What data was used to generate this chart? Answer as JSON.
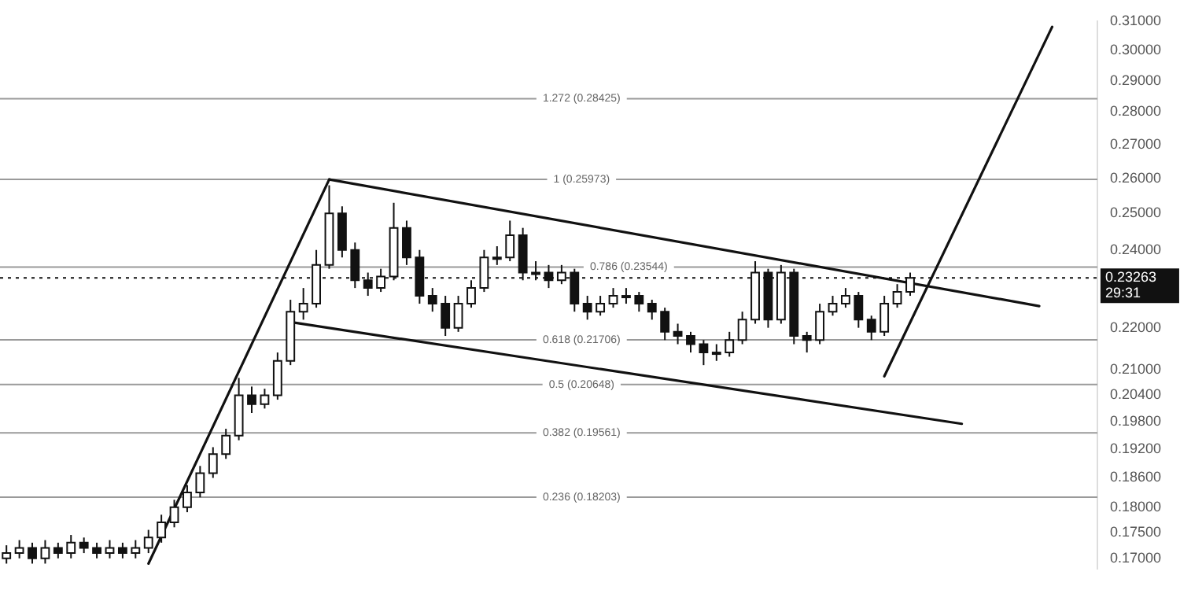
{
  "chart_data": {
    "type": "candlestick",
    "categories": [
      null,
      null,
      null,
      null,
      null,
      null,
      null,
      null,
      null,
      null,
      null,
      null,
      null,
      null,
      null,
      null,
      null,
      null,
      null,
      null,
      null,
      null,
      null,
      null,
      null,
      null,
      null,
      null,
      null,
      null,
      null,
      null,
      null,
      null,
      null,
      null,
      null,
      null,
      null,
      null,
      null,
      null,
      null,
      null,
      null,
      null,
      null,
      null,
      null,
      null,
      null,
      null,
      null,
      null,
      null,
      null,
      null,
      null,
      null,
      null,
      null,
      null,
      null,
      null,
      null,
      null,
      null,
      null,
      null,
      null,
      null,
      null,
      null,
      null,
      null,
      null,
      null,
      null,
      null,
      null,
      null,
      null,
      null,
      null,
      null
    ],
    "ohlc": [
      [
        0.17,
        0.1725,
        0.169,
        0.171
      ],
      [
        0.171,
        0.1735,
        0.17,
        0.172
      ],
      [
        0.172,
        0.173,
        0.169,
        0.17
      ],
      [
        0.17,
        0.1735,
        0.169,
        0.172
      ],
      [
        0.172,
        0.173,
        0.17,
        0.171
      ],
      [
        0.171,
        0.1745,
        0.17,
        0.173
      ],
      [
        0.173,
        0.174,
        0.171,
        0.172
      ],
      [
        0.172,
        0.173,
        0.17,
        0.171
      ],
      [
        0.171,
        0.1735,
        0.17,
        0.172
      ],
      [
        0.172,
        0.173,
        0.17,
        0.171
      ],
      [
        0.171,
        0.1735,
        0.17,
        0.172
      ],
      [
        0.172,
        0.1755,
        0.171,
        0.174
      ],
      [
        0.174,
        0.1785,
        0.173,
        0.177
      ],
      [
        0.177,
        0.1815,
        0.176,
        0.18
      ],
      [
        0.18,
        0.1845,
        0.179,
        0.183
      ],
      [
        0.183,
        0.1885,
        0.182,
        0.187
      ],
      [
        0.187,
        0.1925,
        0.186,
        0.191
      ],
      [
        0.191,
        0.1965,
        0.19,
        0.195
      ],
      [
        0.195,
        0.208,
        0.194,
        0.204
      ],
      [
        0.204,
        0.206,
        0.2,
        0.202
      ],
      [
        0.202,
        0.2055,
        0.201,
        0.204
      ],
      [
        0.204,
        0.214,
        0.203,
        0.212
      ],
      [
        0.212,
        0.227,
        0.211,
        0.224
      ],
      [
        0.224,
        0.23,
        0.222,
        0.226
      ],
      [
        0.226,
        0.24,
        0.225,
        0.236
      ],
      [
        0.236,
        0.258,
        0.235,
        0.25
      ],
      [
        0.25,
        0.252,
        0.238,
        0.24
      ],
      [
        0.24,
        0.242,
        0.23,
        0.232
      ],
      [
        0.232,
        0.234,
        0.228,
        0.23
      ],
      [
        0.23,
        0.235,
        0.229,
        0.233
      ],
      [
        0.233,
        0.253,
        0.232,
        0.246
      ],
      [
        0.246,
        0.248,
        0.236,
        0.238
      ],
      [
        0.238,
        0.24,
        0.226,
        0.228
      ],
      [
        0.228,
        0.23,
        0.224,
        0.226
      ],
      [
        0.226,
        0.228,
        0.218,
        0.22
      ],
      [
        0.22,
        0.228,
        0.219,
        0.226
      ],
      [
        0.226,
        0.232,
        0.225,
        0.23
      ],
      [
        0.23,
        0.24,
        0.229,
        0.238
      ],
      [
        0.238,
        0.241,
        0.236,
        0.238
      ],
      [
        0.238,
        0.248,
        0.237,
        0.244
      ],
      [
        0.244,
        0.246,
        0.232,
        0.234
      ],
      [
        0.234,
        0.237,
        0.232,
        0.234
      ],
      [
        0.234,
        0.236,
        0.23,
        0.232
      ],
      [
        0.232,
        0.236,
        0.231,
        0.234
      ],
      [
        0.234,
        0.235,
        0.224,
        0.226
      ],
      [
        0.226,
        0.228,
        0.222,
        0.224
      ],
      [
        0.224,
        0.228,
        0.223,
        0.226
      ],
      [
        0.226,
        0.23,
        0.225,
        0.228
      ],
      [
        0.228,
        0.23,
        0.226,
        0.228
      ],
      [
        0.228,
        0.229,
        0.224,
        0.226
      ],
      [
        0.226,
        0.227,
        0.222,
        0.224
      ],
      [
        0.224,
        0.225,
        0.217,
        0.219
      ],
      [
        0.219,
        0.221,
        0.216,
        0.218
      ],
      [
        0.218,
        0.219,
        0.214,
        0.216
      ],
      [
        0.216,
        0.217,
        0.211,
        0.214
      ],
      [
        0.214,
        0.216,
        0.212,
        0.214
      ],
      [
        0.214,
        0.219,
        0.213,
        0.217
      ],
      [
        0.217,
        0.224,
        0.216,
        0.222
      ],
      [
        0.222,
        0.237,
        0.221,
        0.234
      ],
      [
        0.234,
        0.235,
        0.22,
        0.222
      ],
      [
        0.222,
        0.236,
        0.221,
        0.234
      ],
      [
        0.234,
        0.235,
        0.216,
        0.218
      ],
      [
        0.218,
        0.219,
        0.214,
        0.217
      ],
      [
        0.217,
        0.226,
        0.216,
        0.224
      ],
      [
        0.224,
        0.228,
        0.223,
        0.226
      ],
      [
        0.226,
        0.23,
        0.225,
        0.228
      ],
      [
        0.228,
        0.229,
        0.22,
        0.222
      ],
      [
        0.222,
        0.223,
        0.217,
        0.219
      ],
      [
        0.219,
        0.228,
        0.218,
        0.226
      ],
      [
        0.226,
        0.231,
        0.225,
        0.229
      ],
      [
        0.229,
        0.234,
        0.228,
        0.23263
      ],
      null,
      null,
      null,
      null,
      null,
      null,
      null,
      null,
      null,
      null,
      null,
      null,
      null,
      null
    ],
    "series": [
      {
        "type": "line",
        "color": "#111111",
        "values": [
          null,
          null,
          null,
          null,
          null,
          null,
          null,
          null,
          null,
          null,
          null,
          0.169,
          null,
          null,
          null,
          null,
          null,
          null,
          null,
          null,
          null,
          null,
          null,
          null,
          null,
          0.2597,
          null,
          null,
          null,
          null,
          null,
          null,
          null,
          null,
          null,
          null,
          null,
          null,
          null,
          null,
          null,
          null,
          null,
          null,
          null,
          null,
          null,
          null,
          null,
          null,
          null,
          null,
          null,
          null,
          null,
          null,
          null,
          null,
          null,
          null,
          null,
          null,
          null,
          null,
          null,
          null,
          null,
          null,
          null,
          null,
          null,
          null,
          null,
          null,
          null,
          null,
          null,
          null,
          null,
          null,
          null,
          null,
          null,
          null,
          null
        ]
      },
      {
        "type": "line",
        "color": "#111111",
        "values": [
          null,
          null,
          null,
          null,
          null,
          null,
          null,
          null,
          null,
          null,
          null,
          null,
          null,
          null,
          null,
          null,
          null,
          null,
          null,
          null,
          null,
          null,
          null,
          null,
          null,
          0.2597,
          null,
          null,
          null,
          null,
          null,
          null,
          null,
          null,
          null,
          null,
          null,
          null,
          null,
          null,
          null,
          null,
          null,
          null,
          null,
          null,
          null,
          null,
          null,
          null,
          null,
          null,
          null,
          null,
          null,
          null,
          null,
          null,
          null,
          null,
          null,
          null,
          null,
          null,
          null,
          null,
          null,
          null,
          null,
          null,
          null,
          null,
          null,
          null,
          null,
          null,
          null,
          null,
          null,
          null,
          0.2254,
          null,
          null,
          null,
          null
        ]
      },
      {
        "type": "line",
        "color": "#111111",
        "values": [
          null,
          null,
          null,
          null,
          null,
          null,
          null,
          null,
          null,
          null,
          null,
          null,
          null,
          null,
          null,
          null,
          null,
          null,
          null,
          null,
          null,
          null,
          0.2214,
          null,
          null,
          null,
          null,
          null,
          null,
          null,
          null,
          null,
          null,
          null,
          null,
          null,
          null,
          null,
          null,
          null,
          null,
          null,
          null,
          null,
          null,
          null,
          null,
          null,
          null,
          null,
          null,
          null,
          null,
          null,
          null,
          null,
          null,
          null,
          null,
          null,
          null,
          null,
          null,
          null,
          null,
          null,
          null,
          null,
          null,
          null,
          null,
          null,
          null,
          null,
          0.1976,
          null,
          null,
          null,
          null,
          null,
          null,
          null,
          null,
          null,
          null
        ]
      },
      {
        "type": "line",
        "color": "#111111",
        "values": [
          null,
          null,
          null,
          null,
          null,
          null,
          null,
          null,
          null,
          null,
          null,
          null,
          null,
          null,
          null,
          null,
          null,
          null,
          null,
          null,
          null,
          null,
          null,
          null,
          null,
          null,
          null,
          null,
          null,
          null,
          null,
          null,
          null,
          null,
          null,
          null,
          null,
          null,
          null,
          null,
          null,
          null,
          null,
          null,
          null,
          null,
          null,
          null,
          null,
          null,
          null,
          null,
          null,
          null,
          null,
          null,
          null,
          null,
          null,
          null,
          null,
          null,
          null,
          null,
          null,
          null,
          null,
          null,
          0.2084,
          null,
          null,
          null,
          null,
          null,
          null,
          null,
          null,
          null,
          null,
          null,
          null,
          0.308,
          null,
          null,
          null
        ]
      }
    ],
    "ref_lines": [
      {
        "axis": "y",
        "value": 0.28425,
        "label": "1.272 (0.28425)",
        "color": "#9a9a9a",
        "line_style": "solid"
      },
      {
        "axis": "y",
        "value": 0.25973,
        "label": "1 (0.25973)",
        "color": "#9a9a9a",
        "line_style": "solid"
      },
      {
        "axis": "y",
        "value": 0.23544,
        "label": "0.786 (0.23544)",
        "color": "#9a9a9a",
        "line_style": "solid"
      },
      {
        "axis": "y",
        "value": 0.21706,
        "label": "0.618 (0.21706)",
        "color": "#9a9a9a",
        "line_style": "solid"
      },
      {
        "axis": "y",
        "value": 0.20648,
        "label": "0.5 (0.20648)",
        "color": "#9a9a9a",
        "line_style": "solid"
      },
      {
        "axis": "y",
        "value": 0.19561,
        "label": "0.382 (0.19561)",
        "color": "#9a9a9a",
        "line_style": "solid"
      },
      {
        "axis": "y",
        "value": 0.18203,
        "label": "0.236 (0.18203)",
        "color": "#9a9a9a",
        "line_style": "solid"
      },
      {
        "axis": "y",
        "value": 0.23263,
        "label": "0.23263\n29:31",
        "color": "#111111",
        "line_style": "dotted"
      }
    ],
    "ylim": [
      0.168,
      0.31
    ],
    "yticks": [
      {
        "value": 0.31,
        "label": "0.31000"
      },
      {
        "value": 0.3,
        "label": "0.30000"
      },
      {
        "value": 0.29,
        "label": "0.29000"
      },
      {
        "value": 0.28,
        "label": "0.28000"
      },
      {
        "value": 0.27,
        "label": "0.27000"
      },
      {
        "value": 0.26,
        "label": "0.26000"
      },
      {
        "value": 0.25,
        "label": "0.25000"
      },
      {
        "value": 0.24,
        "label": "0.24000"
      },
      {
        "value": 0.22,
        "label": "0.22000"
      },
      {
        "value": 0.21,
        "label": "0.21000"
      },
      {
        "value": 0.204,
        "label": "0.20400"
      },
      {
        "value": 0.198,
        "label": "0.19800"
      },
      {
        "value": 0.192,
        "label": "0.19200"
      },
      {
        "value": 0.186,
        "label": "0.18600"
      },
      {
        "value": 0.18,
        "label": "0.18000"
      },
      {
        "value": 0.175,
        "label": "0.17500"
      },
      {
        "value": 0.17,
        "label": "0.17000"
      }
    ],
    "log": "y",
    "grid": false,
    "legend": false,
    "tick_labels": "y",
    "marker": "none",
    "line_style": "solid"
  }
}
